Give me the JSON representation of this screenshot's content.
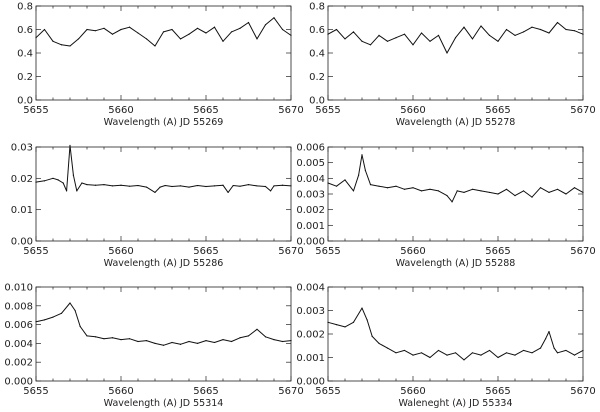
{
  "colors": {
    "line": "#111111",
    "axis": "#222222",
    "background": "#ffffff"
  },
  "chart_data": [
    {
      "type": "line",
      "xlabel": "Wavelength (A) JD 55269",
      "xlim": [
        5655,
        5670
      ],
      "ylim": [
        0,
        0.8
      ],
      "xticks": [
        "5655",
        "5660",
        "5665",
        "5670"
      ],
      "yticks": [
        "0.0",
        "0.2",
        "0.4",
        "0.6",
        "0.8"
      ],
      "x": [
        5655.0,
        5655.5,
        5656.0,
        5656.5,
        5657.0,
        5657.5,
        5658.0,
        5658.5,
        5659.0,
        5659.5,
        5660.0,
        5660.5,
        5661.0,
        5661.5,
        5662.0,
        5662.5,
        5663.0,
        5663.5,
        5664.0,
        5664.5,
        5665.0,
        5665.5,
        5666.0,
        5666.5,
        5667.0,
        5667.5,
        5668.0,
        5668.5,
        5669.0,
        5669.5,
        5670.0
      ],
      "y": [
        0.53,
        0.6,
        0.5,
        0.47,
        0.46,
        0.52,
        0.6,
        0.59,
        0.61,
        0.56,
        0.6,
        0.62,
        0.57,
        0.52,
        0.46,
        0.58,
        0.6,
        0.52,
        0.56,
        0.61,
        0.57,
        0.62,
        0.5,
        0.58,
        0.61,
        0.66,
        0.52,
        0.64,
        0.7,
        0.6,
        0.55
      ]
    },
    {
      "type": "line",
      "xlabel": "Wavelength (A) JD 55278",
      "xlim": [
        5655,
        5670
      ],
      "ylim": [
        0,
        0.8
      ],
      "xticks": [
        "5655",
        "5660",
        "5665",
        "5670"
      ],
      "yticks": [
        "0.0",
        "0.2",
        "0.4",
        "0.6",
        "0.8"
      ],
      "x": [
        5655.0,
        5655.5,
        5656.0,
        5656.5,
        5657.0,
        5657.5,
        5658.0,
        5658.5,
        5659.0,
        5659.5,
        5660.0,
        5660.5,
        5661.0,
        5661.5,
        5662.0,
        5662.5,
        5663.0,
        5663.5,
        5664.0,
        5664.5,
        5665.0,
        5665.5,
        5666.0,
        5666.5,
        5667.0,
        5667.5,
        5668.0,
        5668.5,
        5669.0,
        5669.5,
        5670.0
      ],
      "y": [
        0.56,
        0.6,
        0.52,
        0.58,
        0.5,
        0.47,
        0.55,
        0.5,
        0.53,
        0.56,
        0.47,
        0.57,
        0.5,
        0.55,
        0.4,
        0.53,
        0.62,
        0.52,
        0.63,
        0.55,
        0.5,
        0.6,
        0.55,
        0.58,
        0.62,
        0.6,
        0.57,
        0.66,
        0.6,
        0.59,
        0.56
      ]
    },
    {
      "type": "line",
      "xlabel": "Wavelength (A) JD 55286",
      "xlim": [
        5655,
        5670
      ],
      "ylim": [
        0,
        0.03
      ],
      "xticks": [
        "5655",
        "5660",
        "5665",
        "5670"
      ],
      "yticks": [
        "0.00",
        "0.01",
        "0.02",
        "0.03"
      ],
      "x": [
        5655.0,
        5655.5,
        5656.0,
        5656.3,
        5656.6,
        5656.8,
        5657.0,
        5657.2,
        5657.4,
        5657.7,
        5658.0,
        5658.5,
        5659.0,
        5659.5,
        5660.0,
        5660.5,
        5661.0,
        5661.5,
        5662.0,
        5662.3,
        5662.6,
        5663.0,
        5663.5,
        5664.0,
        5664.5,
        5665.0,
        5665.5,
        5666.0,
        5666.3,
        5666.6,
        5667.0,
        5667.5,
        5668.0,
        5668.5,
        5668.8,
        5669.0,
        5669.5,
        5670.0
      ],
      "y": [
        0.0188,
        0.0192,
        0.02,
        0.0195,
        0.0185,
        0.016,
        0.0305,
        0.021,
        0.016,
        0.0185,
        0.018,
        0.0178,
        0.018,
        0.0176,
        0.0178,
        0.0175,
        0.0177,
        0.0172,
        0.0155,
        0.0172,
        0.0177,
        0.0174,
        0.0176,
        0.0172,
        0.0177,
        0.0174,
        0.0176,
        0.0178,
        0.0155,
        0.0177,
        0.0175,
        0.018,
        0.0176,
        0.0174,
        0.016,
        0.0176,
        0.0178,
        0.0176
      ]
    },
    {
      "type": "line",
      "xlabel": "Wavelength (A) JD 55288",
      "xlim": [
        5655,
        5670
      ],
      "ylim": [
        0,
        0.006
      ],
      "xticks": [
        "5655",
        "5660",
        "5665",
        "5670"
      ],
      "yticks": [
        "0.000",
        "0.001",
        "0.002",
        "0.003",
        "0.004",
        "0.005",
        "0.006"
      ],
      "x": [
        5655.0,
        5655.5,
        5656.0,
        5656.5,
        5656.8,
        5657.0,
        5657.2,
        5657.5,
        5658.0,
        5658.5,
        5659.0,
        5659.5,
        5660.0,
        5660.5,
        5661.0,
        5661.5,
        5662.0,
        5662.3,
        5662.6,
        5663.0,
        5663.5,
        5664.0,
        5664.5,
        5665.0,
        5665.5,
        5666.0,
        5666.5,
        5667.0,
        5667.5,
        5668.0,
        5668.5,
        5669.0,
        5669.5,
        5670.0
      ],
      "y": [
        0.0037,
        0.0035,
        0.0039,
        0.0032,
        0.0042,
        0.0055,
        0.0045,
        0.0036,
        0.0035,
        0.0034,
        0.0035,
        0.0033,
        0.0034,
        0.0032,
        0.0033,
        0.0032,
        0.0029,
        0.0025,
        0.0032,
        0.0031,
        0.0033,
        0.0032,
        0.0031,
        0.003,
        0.0033,
        0.0029,
        0.0032,
        0.0028,
        0.0034,
        0.0031,
        0.0033,
        0.003,
        0.0034,
        0.0031
      ]
    },
    {
      "type": "line",
      "xlabel": "Wavelength (A) JD 55314",
      "xlim": [
        5655,
        5670
      ],
      "ylim": [
        0,
        0.01
      ],
      "xticks": [
        "5655",
        "5660",
        "5665",
        "5670"
      ],
      "yticks": [
        "0.000",
        "0.002",
        "0.004",
        "0.006",
        "0.008",
        "0.010"
      ],
      "x": [
        5655.0,
        5655.5,
        5656.0,
        5656.5,
        5657.0,
        5657.3,
        5657.6,
        5658.0,
        5658.5,
        5659.0,
        5659.5,
        5660.0,
        5660.5,
        5661.0,
        5661.5,
        5662.0,
        5662.5,
        5663.0,
        5663.5,
        5664.0,
        5664.5,
        5665.0,
        5665.5,
        5666.0,
        5666.5,
        5667.0,
        5667.5,
        5668.0,
        5668.5,
        5669.0,
        5669.5,
        5670.0
      ],
      "y": [
        0.0063,
        0.0065,
        0.0068,
        0.0072,
        0.0083,
        0.0075,
        0.0058,
        0.0048,
        0.0047,
        0.0045,
        0.0046,
        0.0044,
        0.0045,
        0.0042,
        0.0043,
        0.004,
        0.0038,
        0.0041,
        0.0039,
        0.0042,
        0.004,
        0.0043,
        0.0041,
        0.0044,
        0.0042,
        0.0046,
        0.0048,
        0.0055,
        0.0047,
        0.0044,
        0.0042,
        0.0043
      ]
    },
    {
      "type": "line",
      "xlabel": "Waleneght (A) JD 55334",
      "xlim": [
        5655,
        5670
      ],
      "ylim": [
        0,
        0.004
      ],
      "xticks": [
        "5655",
        "5660",
        "5665",
        "5670"
      ],
      "yticks": [
        "0.000",
        "0.001",
        "0.002",
        "0.003",
        "0.004"
      ],
      "x": [
        5655.0,
        5655.5,
        5656.0,
        5656.5,
        5657.0,
        5657.3,
        5657.6,
        5658.0,
        5658.5,
        5659.0,
        5659.5,
        5660.0,
        5660.5,
        5661.0,
        5661.5,
        5662.0,
        5662.5,
        5663.0,
        5663.5,
        5664.0,
        5664.5,
        5665.0,
        5665.5,
        5666.0,
        5666.5,
        5667.0,
        5667.5,
        5667.8,
        5668.0,
        5668.3,
        5668.5,
        5669.0,
        5669.5,
        5670.0
      ],
      "y": [
        0.0025,
        0.0024,
        0.0023,
        0.0025,
        0.0031,
        0.0026,
        0.0019,
        0.0016,
        0.0014,
        0.0012,
        0.0013,
        0.0011,
        0.0012,
        0.001,
        0.0013,
        0.0011,
        0.0012,
        0.0009,
        0.0012,
        0.0011,
        0.0013,
        0.001,
        0.0012,
        0.0011,
        0.0013,
        0.0012,
        0.0014,
        0.0018,
        0.0021,
        0.0014,
        0.0012,
        0.0013,
        0.0011,
        0.0013
      ]
    }
  ]
}
